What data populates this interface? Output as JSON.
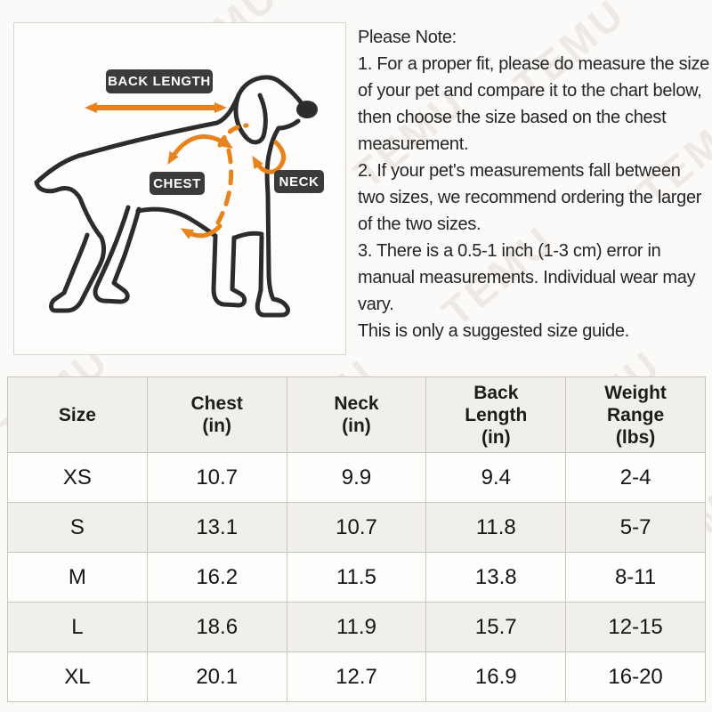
{
  "watermark": {
    "text": "TEMU"
  },
  "diagram": {
    "labels": {
      "back_length": "BACK LENGTH",
      "chest": "CHEST",
      "neck": "NECK"
    },
    "accent_color": "#E8821C",
    "label_bg": "#3B3B3B",
    "outline_color": "#2D2C2B"
  },
  "note": {
    "title": "Please Note:",
    "paragraphs": [
      "1. For a proper fit, please do measure the size of your pet and compare it to the chart below, then choose the size based on the chest measurement.",
      "2. If your pet's measurements fall between two sizes, we recommend ordering the larger of the two sizes.",
      "3. There is a 0.5-1 inch (1-3 cm) error in manual measurements. Individual wear may vary.",
      "This is only a suggested size guide."
    ]
  },
  "table": {
    "columns": [
      {
        "lines": [
          "Size"
        ]
      },
      {
        "lines": [
          "Chest",
          "(in)"
        ]
      },
      {
        "lines": [
          "Neck",
          "(in)"
        ]
      },
      {
        "lines": [
          "Back",
          "Length",
          "(in)"
        ]
      },
      {
        "lines": [
          "Weight",
          "Range",
          "(lbs)"
        ]
      }
    ],
    "rows": [
      {
        "size": "XS",
        "chest": "10.7",
        "neck": "9.9",
        "back_length": "9.4",
        "weight_range": "2-4"
      },
      {
        "size": "S",
        "chest": "13.1",
        "neck": "10.7",
        "back_length": "11.8",
        "weight_range": "5-7"
      },
      {
        "size": "M",
        "chest": "16.2",
        "neck": "11.5",
        "back_length": "13.8",
        "weight_range": "8-11"
      },
      {
        "size": "L",
        "chest": "18.6",
        "neck": "11.9",
        "back_length": "15.7",
        "weight_range": "12-15"
      },
      {
        "size": "XL",
        "chest": "20.1",
        "neck": "12.7",
        "back_length": "16.9",
        "weight_range": "16-20"
      }
    ]
  }
}
